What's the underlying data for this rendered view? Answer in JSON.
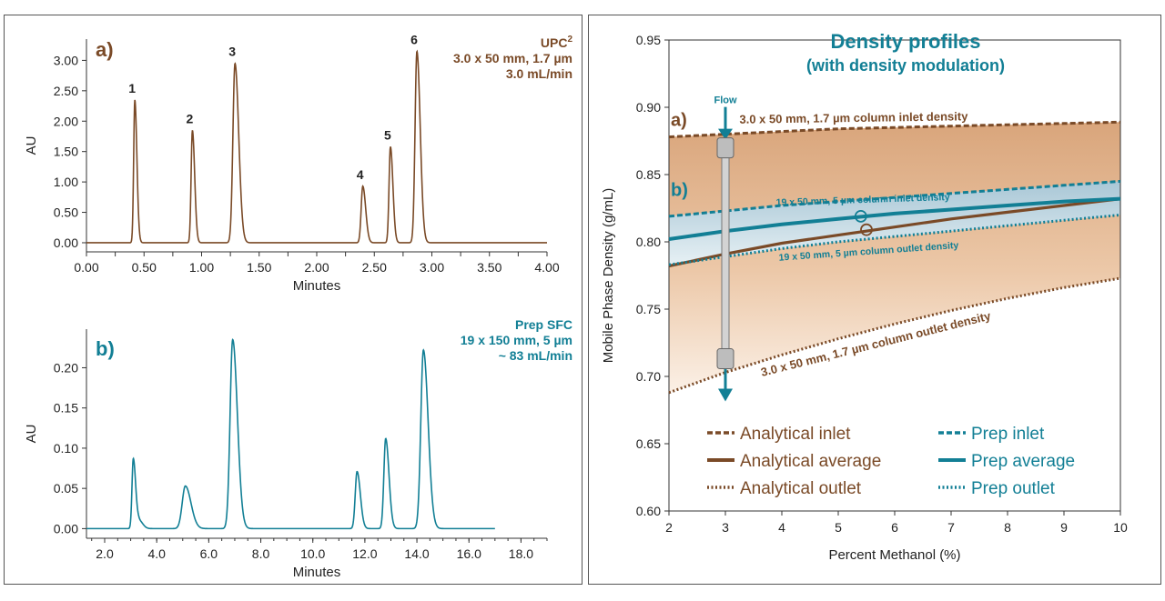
{
  "colors": {
    "brown": "#7a4a27",
    "teal": "#127f95",
    "axis": "#333333"
  },
  "chart_data": [
    {
      "type": "line",
      "panel_label": "a)",
      "annotation": {
        "line1": "UPC",
        "line1_sup": "2",
        "line2": "3.0 x 50 mm, 1.7 µm",
        "line3": "3.0 mL/min"
      },
      "xlabel": "Minutes",
      "ylabel": "AU",
      "xlim": [
        0,
        4.0
      ],
      "ylim": [
        -0.15,
        3.35
      ],
      "xticks": [
        "0.00",
        "0.25",
        "0.50",
        "0.75",
        "1.00",
        "1.25",
        "1.50",
        "1.75",
        "2.00",
        "2.25",
        "2.50",
        "2.75",
        "3.00",
        "3.25",
        "3.50",
        "3.75",
        "4.00"
      ],
      "xtick_labeled": [
        true,
        false,
        true,
        false,
        true,
        false,
        true,
        false,
        true,
        false,
        true,
        false,
        true,
        false,
        true,
        false,
        true
      ],
      "yticks": [
        "0.00",
        "0.50",
        "1.00",
        "1.50",
        "2.00",
        "2.50",
        "3.00"
      ],
      "baseline": 0.0,
      "peaks": [
        {
          "label": "1",
          "x": 0.42,
          "height": 2.35,
          "width": 0.01
        },
        {
          "label": "2",
          "x": 0.92,
          "height": 1.85,
          "width": 0.011
        },
        {
          "label": "3",
          "x": 1.29,
          "height": 2.95,
          "width": 0.018
        },
        {
          "label": "4",
          "x": 2.4,
          "height": 0.93,
          "width": 0.014
        },
        {
          "label": "5",
          "x": 2.64,
          "height": 1.58,
          "width": 0.012
        },
        {
          "label": "6",
          "x": 2.87,
          "height": 3.15,
          "width": 0.016
        }
      ]
    },
    {
      "type": "line",
      "panel_label": "b)",
      "annotation": {
        "line1": "Prep SFC",
        "line2": "19 x 150 mm, 5 µm",
        "line3": "~ 83 mL/min"
      },
      "xlabel": "Minutes",
      "ylabel": "AU",
      "xlim": [
        1.3,
        19.0
      ],
      "ylim": [
        -0.012,
        0.248
      ],
      "xticks": [
        "2.0",
        "4.0",
        "6.0",
        "8.0",
        "10.0",
        "12.0",
        "14.0",
        "16.0",
        "18.0"
      ],
      "yticks": [
        "0.00",
        "0.05",
        "0.10",
        "0.15",
        "0.20"
      ],
      "data_xrange": [
        1.3,
        17.0
      ],
      "baseline": 0.0,
      "peaks": [
        {
          "x": 3.1,
          "height": 0.087,
          "width": 0.05
        },
        {
          "x": 3.32,
          "height": 0.01,
          "width": 0.08
        },
        {
          "x": 5.1,
          "height": 0.053,
          "width": 0.12
        },
        {
          "x": 6.92,
          "height": 0.235,
          "width": 0.1
        },
        {
          "x": 11.7,
          "height": 0.071,
          "width": 0.07
        },
        {
          "x": 12.8,
          "height": 0.112,
          "width": 0.07
        },
        {
          "x": 14.25,
          "height": 0.222,
          "width": 0.1
        }
      ]
    },
    {
      "type": "line",
      "title": "Density profiles",
      "subtitle": "(with density modulation)",
      "xlabel": "Percent Methanol (%)",
      "ylabel": "Mobile Phase Density (g/mL)",
      "xlim": [
        2,
        10
      ],
      "ylim": [
        0.6,
        0.95
      ],
      "xticks": [
        "2",
        "3",
        "4",
        "5",
        "6",
        "7",
        "8",
        "9",
        "10"
      ],
      "yticks": [
        "0.60",
        "0.65",
        "0.70",
        "0.75",
        "0.80",
        "0.85",
        "0.90",
        "0.95"
      ],
      "series": [
        {
          "name": "Analytical inlet",
          "style": "dashed",
          "color": "brown",
          "x": [
            2,
            3,
            4,
            5,
            6,
            7,
            8,
            9,
            10
          ],
          "y": [
            0.878,
            0.88,
            0.882,
            0.884,
            0.885,
            0.886,
            0.887,
            0.888,
            0.889
          ]
        },
        {
          "name": "Analytical average",
          "style": "solid",
          "color": "brown",
          "x": [
            2,
            3,
            4,
            5,
            6,
            7,
            8,
            9,
            10
          ],
          "y": [
            0.782,
            0.791,
            0.799,
            0.805,
            0.811,
            0.817,
            0.822,
            0.827,
            0.832
          ]
        },
        {
          "name": "Analytical outlet",
          "style": "dotted",
          "color": "brown",
          "x": [
            2,
            3,
            4,
            5,
            6,
            7,
            8,
            9,
            10
          ],
          "y": [
            0.688,
            0.703,
            0.716,
            0.728,
            0.739,
            0.749,
            0.758,
            0.766,
            0.773
          ]
        },
        {
          "name": "Prep inlet",
          "style": "dashed",
          "color": "teal",
          "x": [
            2,
            3,
            4,
            5,
            6,
            7,
            8,
            9,
            10
          ],
          "y": [
            0.819,
            0.823,
            0.827,
            0.83,
            0.833,
            0.836,
            0.839,
            0.842,
            0.845
          ]
        },
        {
          "name": "Prep average",
          "style": "solid",
          "color": "teal",
          "x": [
            2,
            3,
            4,
            5,
            6,
            7,
            8,
            9,
            10
          ],
          "y": [
            0.802,
            0.808,
            0.813,
            0.817,
            0.821,
            0.824,
            0.827,
            0.83,
            0.832
          ]
        },
        {
          "name": "Prep outlet",
          "style": "dotted",
          "color": "teal",
          "x": [
            2,
            3,
            4,
            5,
            6,
            7,
            8,
            9,
            10
          ],
          "y": [
            0.783,
            0.789,
            0.795,
            0.8,
            0.804,
            0.808,
            0.812,
            0.816,
            0.82
          ]
        }
      ],
      "markers": [
        {
          "x": 5.4,
          "y": 0.819,
          "color": "teal"
        },
        {
          "x": 5.5,
          "y": 0.809,
          "color": "brown"
        }
      ],
      "annotations": {
        "label_a": "a)",
        "label_b": "b)",
        "flow": "Flow",
        "analytical_inlet": "3.0 x 50 mm, 1.7 µm column inlet density",
        "analytical_outlet": "3.0 x 50 mm, 1.7 µm column outlet density",
        "prep_inlet": "19 x  50 mm, 5 µm column inlet density",
        "prep_outlet": "19 x  50 mm, 5 µm column outlet density"
      },
      "legend_position": "bottom"
    }
  ]
}
